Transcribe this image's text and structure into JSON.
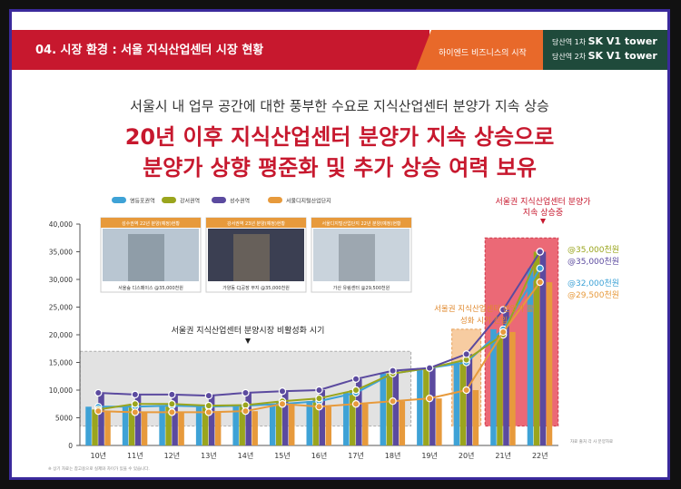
{
  "header": {
    "title": "04. 시장 환경 : 서울 지식산업센터 시장 현황",
    "tab1": "하이엔드 비즈니스의 시작",
    "tab2_line1_prefix": "당산역 1차",
    "tab2_line1_brand": "SK V1 tower",
    "tab2_line2_prefix": "당산역 2차",
    "tab2_line2_brand": "SK V1 tower"
  },
  "subtitle": "서울시 내 업무 공간에 대한 풍부한 수요로 지식산업센터 분양가 지속 상승",
  "headline_line1": "20년 이후 지식산업센터 분양가 지속 상승으로",
  "headline_line2": "분양가 상향 평준화 및 추가 상승 여력 보유",
  "photos": [
    {
      "caption_top": "성수권역 22년 분양(예정)현황",
      "caption_bottom": "서울숲 디스페이스 @35,000천원"
    },
    {
      "caption_top": "강서권역 23년 분양(예정)현황",
      "caption_bottom": "가양동 CJ공장 부지 @35,000천원"
    },
    {
      "caption_top": "서울디지털산업단지 22년 분양(예정)현황",
      "caption_bottom": "가산 유림센터 @29,500천원"
    }
  ],
  "annotations": {
    "gray_box": "서울권 지식산업센터 분양시장 비활성화 시기",
    "orange_box": "서울권 지식산업센터 분양가 활성화 시기 진입",
    "red_box_line1": "서울권 지식산업센터 분양가",
    "red_box_line2": "지속 상승중"
  },
  "value_labels": [
    "@35,000천원",
    "@35,000천원",
    "@32,000천원",
    "@29,500천원"
  ],
  "value_label_colors": [
    "#9aa51d",
    "#5b4a9f",
    "#3ea2d6",
    "#e79a3c"
  ],
  "footnote_left": "※ 상기 자료는 참고용으로 실제와 차이가 있을 수 있습니다.",
  "footnote_right": "자료 출처 각 사 분양자료",
  "chart_data": {
    "type": "bar",
    "categories": [
      "10년",
      "11년",
      "12년",
      "13년",
      "14년",
      "15년",
      "16년",
      "17년",
      "18년",
      "19년",
      "20년",
      "21년",
      "22년"
    ],
    "ylim": [
      0,
      40000
    ],
    "yticks": [
      0,
      5000,
      10000,
      15000,
      20000,
      25000,
      30000,
      35000,
      40000
    ],
    "ytick_labels": [
      "0",
      "5000",
      "10,000",
      "15,000",
      "20,000",
      "25,000",
      "30,000",
      "35,000",
      "40,000"
    ],
    "legend_position": "top-left",
    "series": [
      {
        "name": "영등포권역",
        "color": "#3ea2d6",
        "values": [
          7000,
          7000,
          7200,
          7000,
          7200,
          7500,
          8000,
          9500,
          13000,
          14000,
          15000,
          21000,
          32000
        ]
      },
      {
        "name": "강서권역",
        "color": "#9aa51d",
        "values": [
          6500,
          7500,
          7500,
          7200,
          7300,
          8000,
          8500,
          10000,
          13000,
          14000,
          15500,
          20000,
          35000
        ]
      },
      {
        "name": "성수권역",
        "color": "#5b4a9f",
        "values": [
          9500,
          9200,
          9200,
          9000,
          9500,
          9800,
          10000,
          12000,
          13500,
          14000,
          16500,
          24500,
          35000
        ]
      },
      {
        "name": "서울디지털산업단지",
        "color": "#e79a3c",
        "values": [
          6200,
          6000,
          6000,
          6000,
          6200,
          7500,
          7000,
          7500,
          8000,
          8500,
          10000,
          20500,
          29500
        ]
      }
    ]
  }
}
